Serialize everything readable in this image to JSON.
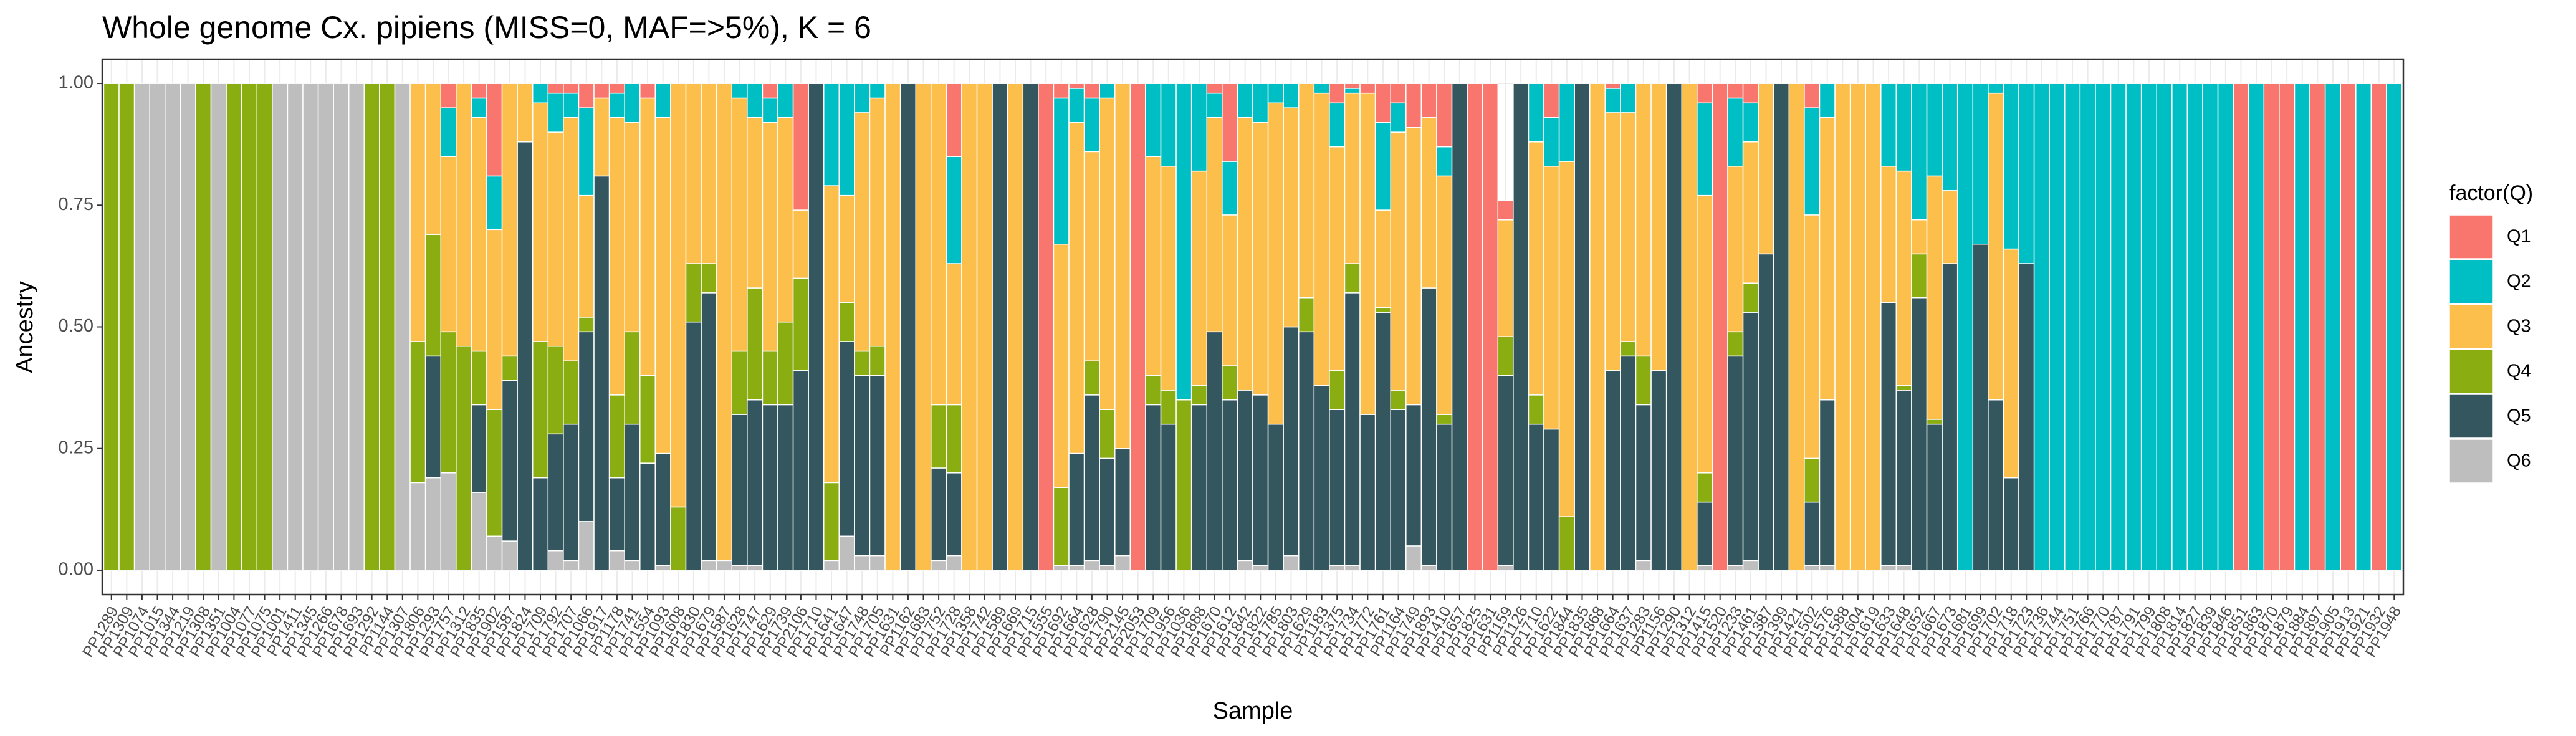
{
  "chart_data": {
    "type": "stacked_bar",
    "title": "Whole genome Cx. pipiens (MISS=0, MAF=>5%), K = 6",
    "x_label": "Sample",
    "y_label": "Ancestry",
    "legend_title": "factor(Q)",
    "legend": "right",
    "grid": true,
    "ylim": [
      -0.05,
      1.05
    ],
    "yticks": [
      {
        "value": 0,
        "label": "0.00"
      },
      {
        "value": 0.25,
        "label": "0.25"
      },
      {
        "value": 0.5,
        "label": "0.50"
      },
      {
        "value": 0.75,
        "label": "0.75"
      },
      {
        "value": 1,
        "label": "1.00"
      }
    ],
    "categories": [
      "PP1289",
      "PP1309",
      "PP1074",
      "PP1015",
      "PP1344",
      "PP1219",
      "PP1308",
      "PP1351",
      "PP1004",
      "PP1077",
      "PP1075",
      "PP1001",
      "PP1411",
      "PP1345",
      "PP1266",
      "PP1678",
      "PP1693",
      "PP1292",
      "PP1144",
      "PP1307",
      "PP1806",
      "PP1293",
      "PP1757",
      "PP1312",
      "PP1835",
      "PP1902",
      "PP1587",
      "PP1824",
      "PP1709",
      "PP1792",
      "PP1707",
      "PP1066",
      "PP1917",
      "PP1178",
      "PP1741",
      "PP1554",
      "PP1093",
      "PP1608",
      "PP1830",
      "PP1679",
      "PP1587",
      "PP1628",
      "PP1747",
      "PP1629",
      "PP1739",
      "PP2106",
      "PP1710",
      "PP1641",
      "PP1647",
      "PP1748",
      "PP1705",
      "PP1631",
      "PP1162",
      "PP1683",
      "PP1752",
      "PP1728",
      "PP1358",
      "PP1742",
      "PP1589",
      "PP1669",
      "PP1715",
      "PP1555",
      "PP1692",
      "PP1664",
      "PP1628",
      "PP1790",
      "PP2145",
      "PP2053",
      "PP1709",
      "PP1956",
      "PP1036",
      "PP1888",
      "PP1670",
      "PP1612",
      "PP1842",
      "PP1822",
      "PP1785",
      "PP1803",
      "PP1629",
      "PP1183",
      "PP1375",
      "PP1734",
      "PP1772",
      "PP1761",
      "PP1164",
      "PP1749",
      "PP1893",
      "PP1410",
      "PP1657",
      "PP1825",
      "PP1631",
      "PP1159",
      "PP1126",
      "PP1710",
      "PP1622",
      "PP1844",
      "PP1835",
      "PP1868",
      "PP1664",
      "PP1637",
      "PP1283",
      "PP1156",
      "PP1290",
      "PP1312",
      "PP1415",
      "PP1520",
      "PP1233",
      "PP1461",
      "PP1387",
      "PP1399",
      "PP1421",
      "PP1502",
      "PP1576",
      "PP1588",
      "PP1604",
      "PP1619",
      "PP1633",
      "PP1648",
      "PP1652",
      "PP1667",
      "PP1673",
      "PP1681",
      "PP1699",
      "PP1702",
      "PP1718",
      "PP1723",
      "PP1736",
      "PP1744",
      "PP1751",
      "PP1766",
      "PP1770",
      "PP1787",
      "PP1791",
      "PP1799",
      "PP1808",
      "PP1814",
      "PP1827",
      "PP1839",
      "PP1846",
      "PP1851",
      "PP1863",
      "PP1870",
      "PP1879",
      "PP1884",
      "PP1897",
      "PP1905",
      "PP1913",
      "PP1921",
      "PP1932",
      "PP1948"
    ],
    "series": [
      {
        "name": "Q1",
        "color": "#F8766D",
        "values": [
          0,
          0,
          0,
          0,
          0,
          0,
          0,
          0,
          0,
          0,
          0,
          0,
          0,
          0,
          0,
          0,
          0,
          0,
          0,
          0,
          0,
          0,
          0.05,
          0,
          0.03,
          0.19,
          0,
          0,
          0,
          0.02,
          0.02,
          0.05,
          0.03,
          0.02,
          0,
          0.03,
          0,
          0,
          0,
          0,
          0,
          0,
          0,
          0.03,
          0,
          0.26,
          0,
          0,
          0,
          0,
          0,
          0,
          0,
          0,
          0,
          0.15,
          0,
          0,
          0,
          0,
          0,
          1,
          0.03,
          0.01,
          0.03,
          0,
          0,
          1,
          0,
          0,
          0,
          0,
          0.02,
          0.16,
          0,
          0,
          0,
          0,
          0,
          0,
          0.04,
          0.01,
          0.02,
          0.08,
          0.04,
          0.09,
          0.07,
          0.13,
          0,
          1,
          1,
          0.04,
          0,
          0,
          0.07,
          0,
          0,
          0,
          0.01,
          0,
          0,
          0,
          0,
          0,
          0.04,
          1,
          0.03,
          0.04,
          0,
          0,
          0,
          0.05,
          0,
          0,
          0,
          0,
          0,
          0,
          0,
          0,
          0,
          0,
          0,
          0,
          0,
          0,
          0,
          0,
          0,
          0,
          0,
          0,
          0,
          0,
          0,
          0,
          0,
          0,
          0,
          1,
          0,
          1,
          1,
          0,
          1,
          0,
          1,
          0,
          1,
          0
        ]
      },
      {
        "name": "Q2",
        "color": "#00BFC4",
        "values": [
          0,
          0,
          0,
          0,
          0,
          0,
          0,
          0,
          0,
          0,
          0,
          0,
          0,
          0,
          0,
          0,
          0,
          0,
          0,
          0,
          0,
          0,
          0.1,
          0,
          0.04,
          0.11,
          0,
          0,
          0.04,
          0.08,
          0.05,
          0.18,
          0,
          0.05,
          0.08,
          0,
          0.07,
          0,
          0,
          0,
          0,
          0.03,
          0.07,
          0.05,
          0.07,
          0,
          0,
          0.21,
          0.23,
          0.06,
          0.03,
          0,
          0,
          0,
          0,
          0.22,
          0,
          0,
          0,
          0,
          0,
          0,
          0.3,
          0.07,
          0.11,
          0.03,
          0,
          0,
          0.15,
          0.17,
          0.65,
          0.18,
          0.05,
          0.11,
          0.07,
          0.08,
          0.04,
          0.05,
          0,
          0.02,
          0.09,
          0.01,
          0,
          0.18,
          0.06,
          0,
          0,
          0.06,
          0,
          0,
          0,
          0,
          0,
          0.12,
          0.1,
          0.16,
          0,
          0,
          0.05,
          0.06,
          0,
          0,
          0,
          0,
          0.19,
          0,
          0.14,
          0.08,
          0,
          0,
          0,
          0.22,
          0.07,
          0,
          0,
          0,
          0.17,
          0.18,
          0.28,
          0.19,
          0.22,
          1,
          0.33,
          0.02,
          0.34,
          0.37,
          1,
          1,
          1,
          1,
          1,
          1,
          1,
          1,
          1,
          1,
          1,
          1,
          1,
          0,
          1,
          0,
          0,
          1,
          0,
          1,
          0,
          1,
          0,
          1
        ]
      },
      {
        "name": "Q3",
        "color": "#FDBF4B",
        "values": [
          0,
          0,
          0,
          0,
          0,
          0,
          0,
          0,
          0,
          0,
          0,
          0,
          0,
          0,
          0,
          0,
          0,
          0,
          0,
          0,
          0.53,
          0.31,
          0.36,
          0.54,
          0.48,
          0.37,
          0.56,
          0.12,
          0.49,
          0.44,
          0.5,
          0.25,
          0.16,
          0.57,
          0.43,
          0.57,
          0.69,
          0.87,
          0.37,
          0.37,
          0.98,
          0.52,
          0.35,
          0.47,
          0.42,
          0.14,
          0,
          0.61,
          0.22,
          0.49,
          0.51,
          1,
          0,
          1,
          0.66,
          0.29,
          1,
          1,
          0,
          1,
          0,
          0,
          0.5,
          0.68,
          0.43,
          0.64,
          0.75,
          0,
          0.45,
          0.46,
          0,
          0.44,
          0.44,
          0.31,
          0.56,
          0.56,
          0.66,
          0.45,
          0.44,
          0.6,
          0.46,
          0.35,
          0.66,
          0.2,
          0.53,
          0.57,
          0.35,
          0.49,
          0,
          0,
          0,
          0.24,
          0,
          0.52,
          0.54,
          0.73,
          0,
          1,
          0.53,
          0.47,
          0.56,
          0.59,
          0,
          1,
          0.57,
          0,
          0.34,
          0.29,
          0.35,
          0,
          1,
          0.5,
          0.58,
          1,
          1,
          1,
          0.28,
          0.44,
          0.07,
          0.5,
          0.15,
          0,
          0,
          0.63,
          0.47,
          0,
          0,
          0,
          0,
          0,
          0,
          0,
          0,
          0,
          0,
          0,
          0,
          0,
          0,
          0,
          0,
          0,
          0,
          0,
          0,
          0,
          0,
          0,
          0,
          0
        ]
      },
      {
        "name": "Q4",
        "color": "#8AAE12",
        "values": [
          1,
          1,
          0,
          0,
          0,
          0,
          1,
          0,
          1,
          1,
          1,
          0,
          0,
          0,
          0,
          0,
          0,
          1,
          1,
          0,
          0.29,
          0.25,
          0.29,
          0.46,
          0.11,
          0.26,
          0.05,
          0,
          0.28,
          0.18,
          0.13,
          0.03,
          0,
          0.17,
          0.19,
          0.18,
          0,
          0.13,
          0.12,
          0.06,
          0,
          0.13,
          0.23,
          0.11,
          0.17,
          0.19,
          0,
          0.16,
          0.08,
          0.05,
          0.06,
          0,
          0,
          0,
          0.13,
          0.14,
          0,
          0,
          0,
          0,
          0,
          0,
          0.16,
          0,
          0.07,
          0.1,
          0,
          0,
          0.06,
          0.07,
          0.35,
          0.04,
          0,
          0.07,
          0,
          0,
          0,
          0,
          0.07,
          0,
          0.08,
          0.06,
          0,
          0.01,
          0.04,
          0,
          0,
          0.02,
          0,
          0,
          0,
          0.08,
          0,
          0.06,
          0,
          0.11,
          0,
          0,
          0,
          0.03,
          0.1,
          0,
          0,
          0,
          0.06,
          0,
          0.05,
          0.06,
          0,
          0,
          0,
          0.09,
          0,
          0,
          0,
          0,
          0,
          0.01,
          0.09,
          0.01,
          0,
          0,
          0,
          0,
          0,
          0,
          0,
          0,
          0,
          0,
          0,
          0,
          0,
          0,
          0,
          0,
          0,
          0,
          0,
          0,
          0,
          0,
          0,
          0,
          0,
          0,
          0,
          0,
          0,
          0
        ]
      },
      {
        "name": "Q5",
        "color": "#33565F",
        "values": [
          0,
          0,
          0,
          0,
          0,
          0,
          0,
          0,
          0,
          0,
          0,
          0,
          0,
          0,
          0,
          0,
          0,
          0,
          0,
          0,
          0,
          0.25,
          0,
          0,
          0.18,
          0,
          0.33,
          0.88,
          0.19,
          0.24,
          0.28,
          0.39,
          0.81,
          0.15,
          0.28,
          0.22,
          0.23,
          0,
          0.51,
          0.55,
          0,
          0.31,
          0.34,
          0.34,
          0.34,
          0.41,
          1,
          0,
          0.4,
          0.37,
          0.37,
          0,
          1,
          0,
          0.19,
          0.17,
          0,
          0,
          1,
          0,
          1,
          0,
          0,
          0.23,
          0.34,
          0.22,
          0.22,
          0,
          0.34,
          0.3,
          0,
          0.34,
          0.49,
          0.35,
          0.35,
          0.35,
          0.3,
          0.47,
          0.49,
          0.38,
          0.32,
          0.56,
          0.32,
          0.53,
          0.33,
          0.29,
          0.57,
          0.3,
          1,
          0,
          0,
          0.39,
          1,
          0.3,
          0.29,
          0,
          1,
          0,
          0.41,
          0.44,
          0.32,
          0.41,
          1,
          0,
          0.13,
          0,
          0.43,
          0.51,
          0.65,
          1,
          0,
          0.13,
          0.34,
          0,
          0,
          0,
          0.54,
          0.36,
          0.56,
          0.3,
          0.63,
          0,
          0.67,
          0.35,
          0.19,
          0.63,
          0,
          0,
          0,
          0,
          0,
          0,
          0,
          0,
          0,
          0,
          0,
          0,
          0,
          0,
          0,
          0,
          0,
          0,
          0,
          0,
          0,
          0,
          0,
          0
        ]
      },
      {
        "name": "Q6",
        "color": "#BEBEBE",
        "values": [
          0,
          0,
          1,
          1,
          1,
          1,
          0,
          1,
          0,
          0,
          0,
          1,
          1,
          1,
          1,
          1,
          1,
          0,
          0,
          1,
          0.18,
          0.19,
          0.2,
          0,
          0.16,
          0.07,
          0.06,
          0,
          0,
          0.04,
          0.02,
          0.1,
          0,
          0.04,
          0.02,
          0,
          0.01,
          0,
          0,
          0.02,
          0.02,
          0.01,
          0.01,
          0,
          0,
          0,
          0,
          0.02,
          0.07,
          0.03,
          0.03,
          0,
          0,
          0,
          0.02,
          0.03,
          0,
          0,
          0,
          0,
          0,
          0,
          0.01,
          0.01,
          0.02,
          0.01,
          0.03,
          0,
          0,
          0,
          0,
          0,
          0,
          0,
          0.02,
          0.01,
          0,
          0.03,
          0,
          0,
          0.01,
          0.01,
          0,
          0,
          0,
          0.05,
          0.01,
          0,
          0,
          0,
          0,
          0.01,
          0,
          0,
          0,
          0,
          0,
          0,
          0,
          0,
          0.02,
          0,
          0,
          0,
          0.01,
          0,
          0.01,
          0.02,
          0,
          0,
          0,
          0.01,
          0.01,
          0,
          0,
          0,
          0.01,
          0.01,
          0,
          0,
          0,
          0,
          0,
          0,
          0,
          0,
          0,
          0,
          0,
          0,
          0,
          0,
          0,
          0,
          0,
          0,
          0,
          0,
          0,
          0,
          0,
          0,
          0,
          0,
          0,
          0,
          0,
          0,
          0,
          0
        ]
      }
    ]
  }
}
